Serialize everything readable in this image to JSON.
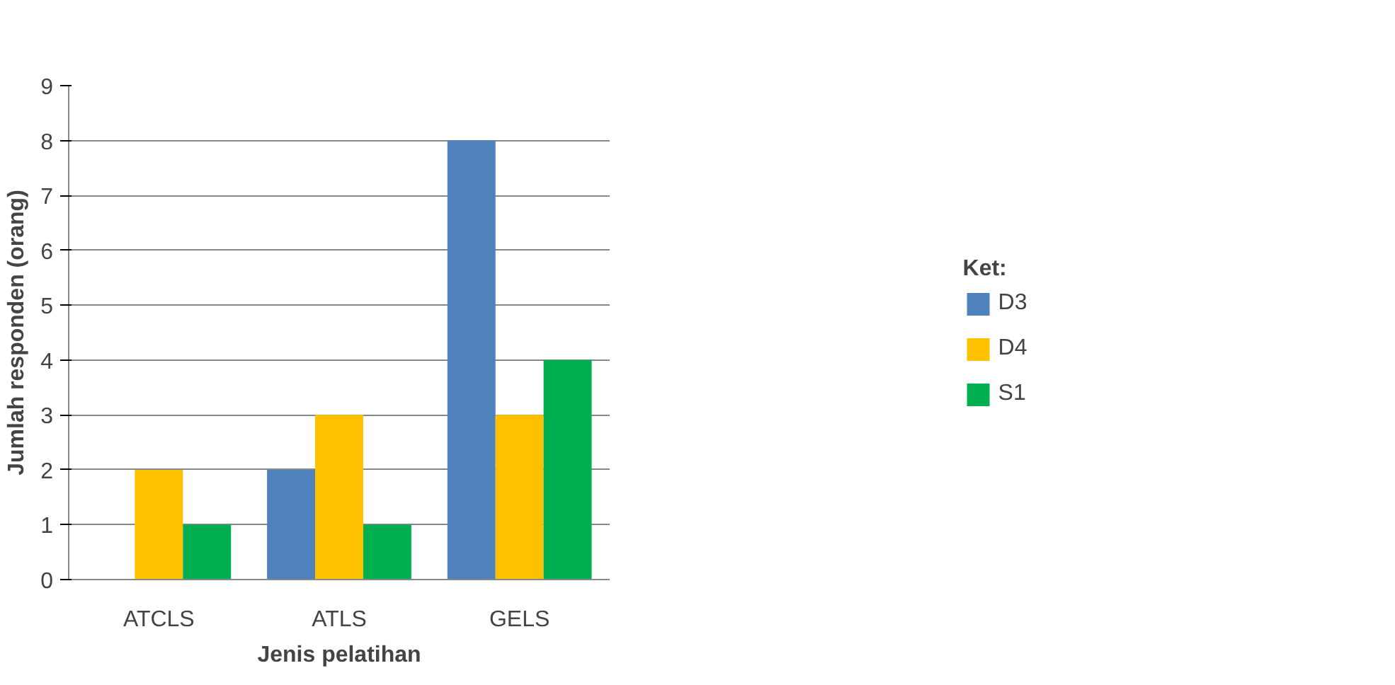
{
  "chart_data": {
    "type": "bar",
    "xlabel": "Jenis pelatihan",
    "ylabel": "Jumlah responden (orang)",
    "legend_title": "Ket:",
    "categories": [
      "ATCLS",
      "ATLS",
      "GELS"
    ],
    "series": [
      {
        "name": "D3",
        "color": "#4f81bd",
        "values": [
          0,
          2,
          8
        ]
      },
      {
        "name": "D4",
        "color": "#ffc000",
        "values": [
          2,
          3,
          3
        ]
      },
      {
        "name": "S1",
        "color": "#00b050",
        "values": [
          1,
          1,
          4
        ]
      }
    ],
    "ylim": [
      0,
      9
    ],
    "yticks": [
      0,
      1,
      2,
      3,
      4,
      5,
      6,
      7,
      8,
      9
    ],
    "grid": "y",
    "legend": "right"
  }
}
